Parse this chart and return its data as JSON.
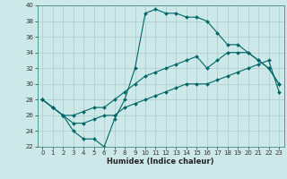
{
  "title": "",
  "xlabel": "Humidex (Indice chaleur)",
  "xlim": [
    -0.5,
    23.5
  ],
  "ylim": [
    22,
    40
  ],
  "yticks": [
    22,
    24,
    26,
    28,
    30,
    32,
    34,
    36,
    38,
    40
  ],
  "xticks": [
    0,
    1,
    2,
    3,
    4,
    5,
    6,
    7,
    8,
    9,
    10,
    11,
    12,
    13,
    14,
    15,
    16,
    17,
    18,
    19,
    20,
    21,
    22,
    23
  ],
  "bg_color": "#cce8e8",
  "grid_color": "#aacccc",
  "line_color": "#006666",
  "line1_y": [
    28,
    27,
    26,
    24,
    23,
    23,
    22,
    25.5,
    28,
    32,
    39,
    39.5,
    39,
    39,
    38.5,
    38.5,
    38,
    36.5,
    35,
    35,
    34,
    33,
    32,
    30
  ],
  "line2_y": [
    28,
    27,
    26,
    26,
    26.5,
    27,
    27,
    28,
    29,
    30,
    31,
    31.5,
    32,
    32.5,
    33,
    33.5,
    32,
    33,
    34,
    34,
    34,
    33,
    32,
    30
  ],
  "line3_y": [
    28,
    27,
    26,
    25,
    25,
    25.5,
    26,
    26,
    27,
    27.5,
    28,
    28.5,
    29,
    29.5,
    30,
    30,
    30,
    30.5,
    31,
    31.5,
    32,
    32.5,
    33,
    29
  ],
  "tick_fontsize": 5.0,
  "xlabel_fontsize": 6.0,
  "marker_size": 2.0,
  "linewidth": 0.8
}
